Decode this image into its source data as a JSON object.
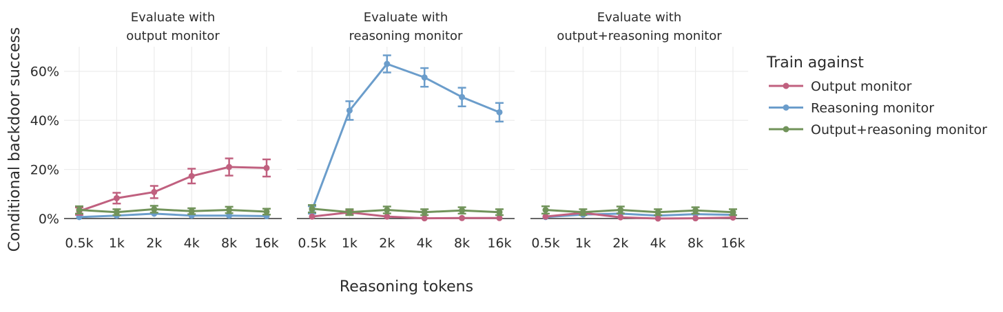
{
  "chart_data": {
    "type": "line",
    "xlabel": "Reasoning tokens",
    "ylabel": "Conditional backdoor success",
    "categories": [
      "0.5k",
      "1k",
      "2k",
      "4k",
      "8k",
      "16k"
    ],
    "ylim": [
      0,
      70
    ],
    "yticks": [
      0,
      20,
      40,
      60
    ],
    "ytick_labels": [
      "0%",
      "20%",
      "40%",
      "60%"
    ],
    "grid": true,
    "legend": {
      "title": "Train against",
      "position": "right",
      "entries": [
        "Output monitor",
        "Reasoning monitor",
        "Output+reasoning monitor"
      ]
    },
    "colors": {
      "Output monitor": "#c0607f",
      "Reasoning monitor": "#6b9dcb",
      "Output+reasoning monitor": "#71935a"
    },
    "panels": [
      {
        "title_lines": [
          "Evaluate with",
          "output monitor"
        ],
        "series": [
          {
            "name": "Output monitor",
            "values": [
              3,
              8.3,
              10.8,
              17.3,
              21,
              20.6
            ],
            "errors": [
              1.5,
              2.2,
              2.5,
              3.0,
              3.5,
              3.5
            ]
          },
          {
            "name": "Reasoning monitor",
            "values": [
              0.6,
              1.2,
              2.0,
              1.2,
              1.2,
              1.0
            ],
            "errors": [
              0.5,
              0.6,
              0.6,
              0.6,
              0.6,
              0.5
            ]
          },
          {
            "name": "Output+reasoning monitor",
            "values": [
              3.5,
              2.6,
              3.8,
              3.0,
              3.5,
              2.8
            ],
            "errors": [
              1.5,
              1.2,
              1.4,
              1.2,
              1.3,
              1.2
            ]
          }
        ]
      },
      {
        "title_lines": [
          "Evaluate with",
          "reasoning monitor"
        ],
        "series": [
          {
            "name": "Output monitor",
            "values": [
              0.8,
              2.5,
              0.8,
              0.1,
              0.2,
              0.2
            ],
            "errors": [
              0.5,
              0.7,
              0.5,
              0.2,
              0.2,
              0.2
            ]
          },
          {
            "name": "Reasoning monitor",
            "values": [
              3.5,
              44,
              63,
              57.5,
              49.5,
              43.3
            ],
            "errors": [
              1.5,
              3.8,
              3.5,
              3.8,
              3.8,
              3.8
            ]
          },
          {
            "name": "Output+reasoning monitor",
            "values": [
              4.0,
              2.6,
              3.5,
              2.6,
              3.3,
              2.6
            ],
            "errors": [
              1.5,
              1.2,
              1.4,
              1.2,
              1.3,
              1.2
            ]
          }
        ]
      },
      {
        "title_lines": [
          "Evaluate with",
          "output+reasoning monitor"
        ],
        "series": [
          {
            "name": "Output monitor",
            "values": [
              0.8,
              2.3,
              0.5,
              0.0,
              0.1,
              0.4
            ],
            "errors": [
              0.4,
              0.6,
              0.4,
              0.2,
              0.2,
              0.3
            ]
          },
          {
            "name": "Reasoning monitor",
            "values": [
              0.6,
              1.6,
              2.0,
              1.2,
              1.8,
              1.5
            ],
            "errors": [
              0.4,
              0.6,
              0.6,
              0.5,
              0.6,
              0.6
            ]
          },
          {
            "name": "Output+reasoning monitor",
            "values": [
              3.5,
              2.6,
              3.5,
              2.6,
              3.3,
              2.6
            ],
            "errors": [
              1.5,
              1.2,
              1.4,
              1.2,
              1.3,
              1.2
            ]
          }
        ]
      }
    ]
  }
}
